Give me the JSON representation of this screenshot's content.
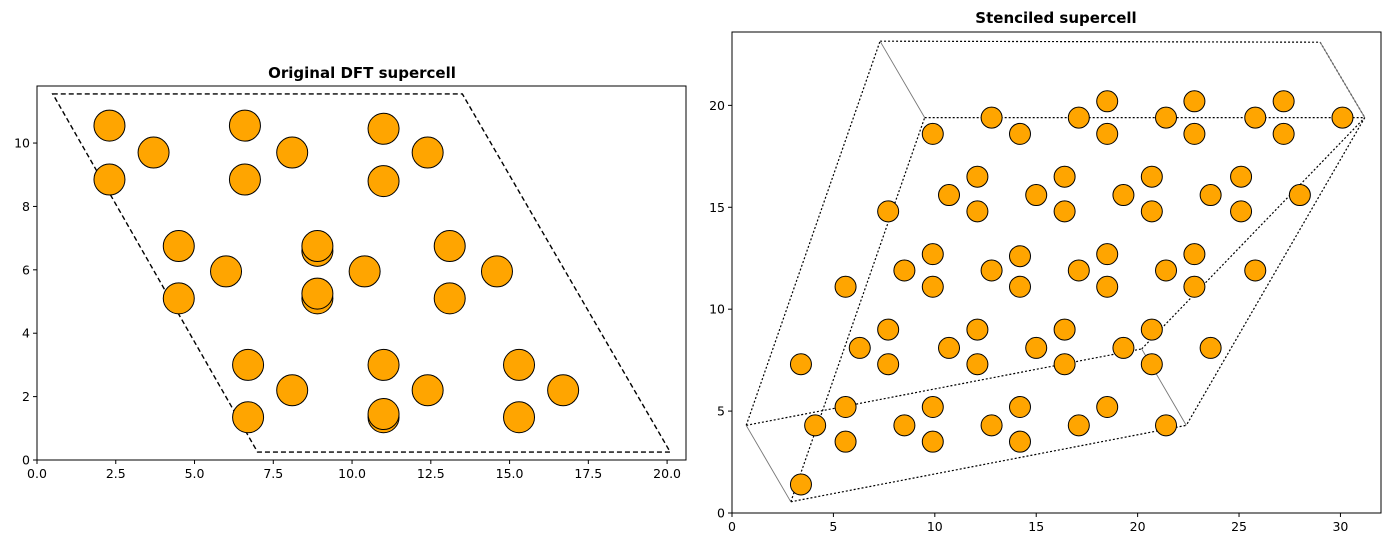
{
  "chart_data": [
    {
      "type": "scatter",
      "title": "Original DFT supercell",
      "xlabel": "",
      "ylabel": "",
      "xlim": [
        0,
        20.6
      ],
      "ylim": [
        0,
        11.8
      ],
      "xticks": [
        "0.0",
        "2.5",
        "5.0",
        "7.5",
        "10.0",
        "12.5",
        "15.0",
        "17.5",
        "20.0"
      ],
      "yticks": [
        "0",
        "2",
        "4",
        "6",
        "8",
        "10"
      ],
      "grid": false,
      "marker_color": "#FFA500",
      "cell_outline": {
        "style": "dashed",
        "vertices": [
          [
            0.5,
            11.55
          ],
          [
            13.5,
            11.55
          ],
          [
            20.1,
            0.25
          ],
          [
            7.0,
            0.25
          ]
        ]
      },
      "points": [
        [
          2.3,
          10.55
        ],
        [
          6.6,
          10.55
        ],
        [
          11.0,
          10.45
        ],
        [
          3.7,
          9.7
        ],
        [
          8.1,
          9.7
        ],
        [
          12.4,
          9.7
        ],
        [
          2.3,
          8.85
        ],
        [
          6.6,
          8.85
        ],
        [
          11.0,
          8.8
        ],
        [
          4.5,
          6.75
        ],
        [
          8.9,
          6.6
        ],
        [
          8.9,
          6.75
        ],
        [
          13.1,
          6.75
        ],
        [
          6.0,
          5.95
        ],
        [
          10.4,
          5.95
        ],
        [
          14.6,
          5.95
        ],
        [
          4.5,
          5.1
        ],
        [
          8.9,
          5.1
        ],
        [
          8.9,
          5.25
        ],
        [
          13.1,
          5.1
        ],
        [
          6.7,
          3.0
        ],
        [
          11.0,
          3.0
        ],
        [
          15.3,
          3.0
        ],
        [
          8.1,
          2.2
        ],
        [
          12.4,
          2.2
        ],
        [
          16.7,
          2.2
        ],
        [
          6.7,
          1.35
        ],
        [
          11.0,
          1.35
        ],
        [
          11.0,
          1.45
        ],
        [
          15.3,
          1.35
        ]
      ]
    },
    {
      "type": "scatter",
      "title": "Stenciled supercell",
      "xlabel": "",
      "ylabel": "",
      "xlim": [
        0,
        32
      ],
      "ylim": [
        0,
        23.6
      ],
      "xticks": [
        "0",
        "5",
        "10",
        "15",
        "20",
        "25",
        "30"
      ],
      "yticks": [
        "0",
        "5",
        "10",
        "15",
        "20"
      ],
      "grid": false,
      "marker_color": "#FFA500",
      "box_vertices": {
        "A": [
          2.9,
          0.55
        ],
        "B": [
          22.4,
          4.3
        ],
        "C": [
          9.5,
          19.4
        ],
        "D": [
          29.0,
          23.1
        ],
        "E": [
          0.7,
          4.3
        ],
        "F": [
          20.2,
          8.05
        ],
        "G": [
          7.3,
          23.15
        ],
        "H": [
          31.2,
          19.4
        ]
      },
      "points": [
        [
          3.4,
          1.4
        ],
        [
          4.1,
          4.3
        ],
        [
          5.6,
          3.5
        ],
        [
          5.6,
          5.2
        ],
        [
          8.5,
          4.3
        ],
        [
          9.9,
          3.5
        ],
        [
          9.9,
          5.2
        ],
        [
          12.8,
          4.3
        ],
        [
          14.2,
          3.5
        ],
        [
          14.2,
          5.2
        ],
        [
          17.1,
          4.3
        ],
        [
          18.5,
          5.2
        ],
        [
          21.4,
          4.3
        ],
        [
          3.4,
          7.3
        ],
        [
          5.6,
          11.1
        ],
        [
          6.3,
          8.1
        ],
        [
          7.7,
          7.3
        ],
        [
          7.7,
          9.0
        ],
        [
          8.5,
          11.9
        ],
        [
          9.9,
          11.1
        ],
        [
          9.9,
          12.7
        ],
        [
          10.7,
          8.1
        ],
        [
          12.1,
          7.3
        ],
        [
          12.1,
          9.0
        ],
        [
          12.8,
          11.9
        ],
        [
          14.2,
          11.1
        ],
        [
          14.2,
          12.6
        ],
        [
          15.0,
          8.1
        ],
        [
          16.4,
          7.3
        ],
        [
          16.4,
          9.0
        ],
        [
          17.1,
          11.9
        ],
        [
          18.5,
          11.1
        ],
        [
          18.5,
          12.7
        ],
        [
          19.3,
          8.1
        ],
        [
          20.7,
          7.3
        ],
        [
          20.7,
          9.0
        ],
        [
          21.4,
          11.9
        ],
        [
          22.8,
          11.1
        ],
        [
          22.8,
          12.7
        ],
        [
          23.6,
          8.1
        ],
        [
          25.8,
          11.9
        ],
        [
          7.7,
          14.8
        ],
        [
          9.9,
          18.6
        ],
        [
          10.7,
          15.6
        ],
        [
          12.1,
          14.8
        ],
        [
          12.1,
          16.5
        ],
        [
          12.8,
          19.4
        ],
        [
          14.2,
          18.6
        ],
        [
          15.0,
          15.6
        ],
        [
          16.4,
          14.8
        ],
        [
          16.4,
          16.5
        ],
        [
          17.1,
          19.4
        ],
        [
          18.5,
          18.6
        ],
        [
          18.5,
          20.2
        ],
        [
          19.3,
          15.6
        ],
        [
          20.7,
          14.8
        ],
        [
          20.7,
          16.5
        ],
        [
          21.4,
          19.4
        ],
        [
          22.8,
          18.6
        ],
        [
          22.8,
          20.2
        ],
        [
          23.6,
          15.6
        ],
        [
          25.1,
          14.8
        ],
        [
          25.1,
          16.5
        ],
        [
          25.8,
          19.4
        ],
        [
          27.2,
          18.6
        ],
        [
          27.2,
          20.2
        ],
        [
          28.0,
          15.6
        ],
        [
          30.1,
          19.4
        ]
      ]
    }
  ]
}
